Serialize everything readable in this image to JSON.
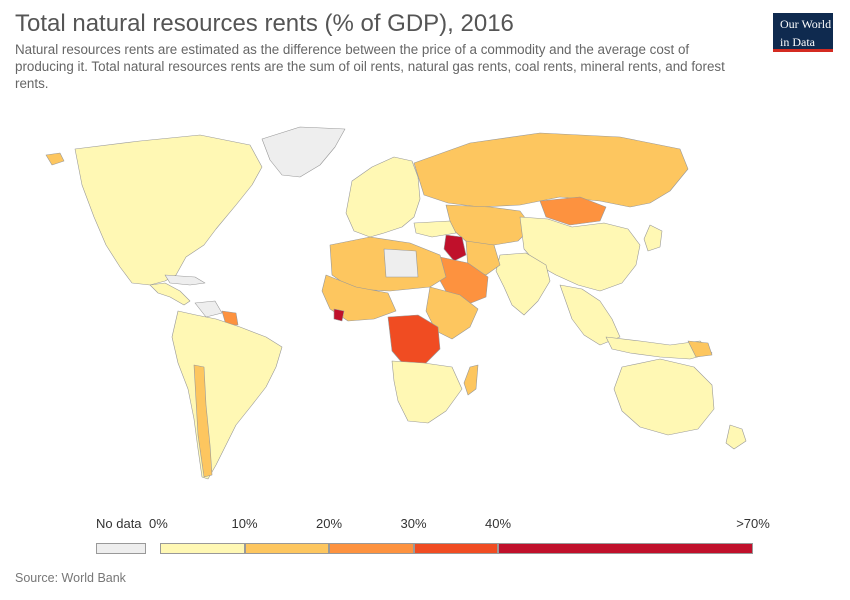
{
  "header": {
    "title": "Total natural resources rents (% of GDP), 2016",
    "subtitle": "Natural resources rents are estimated as the difference between the price of a commodity and the average cost of producing it. Total natural resources rents are the sum of oil rents, natural gas rents, coal rents, mineral rents, and forest rents.",
    "logo_line1": "Our World",
    "logo_line2": "in Data",
    "logo_color": "#0f2a4f"
  },
  "legend": {
    "no_data_label": "No data",
    "no_data_color": "#eeeeee",
    "tick_labels": [
      "0%",
      "10%",
      "20%",
      "30%",
      "40%",
      ">70%"
    ],
    "bins": [
      {
        "from": 0,
        "to": 10,
        "color": "#fff8b4"
      },
      {
        "from": 10,
        "to": 20,
        "color": "#fdc65f"
      },
      {
        "from": 20,
        "to": 30,
        "color": "#fd923f"
      },
      {
        "from": 30,
        "to": 40,
        "color": "#f04c22"
      },
      {
        "from": 40,
        "to": 70,
        "color": "#c0102b"
      }
    ]
  },
  "footer": {
    "source": "Source: World Bank"
  }
}
